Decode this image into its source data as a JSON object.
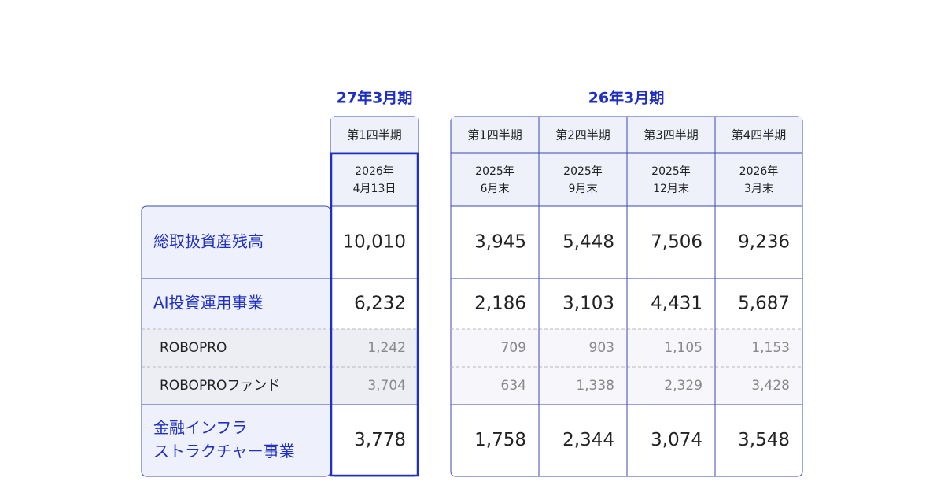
{
  "groups": [
    {
      "title": "27年3月期",
      "columns": [
        {
          "quarter": "第1四半期",
          "date": [
            "2026年",
            "4月13日"
          ]
        }
      ]
    },
    {
      "title": "26年3月期",
      "columns": [
        {
          "quarter": "第1四半期",
          "date": [
            "2025年",
            "6月末"
          ]
        },
        {
          "quarter": "第2四半期",
          "date": [
            "2025年",
            "9月末"
          ]
        },
        {
          "quarter": "第3四半期",
          "date": [
            "2025年",
            "12月末"
          ]
        },
        {
          "quarter": "第4四半期",
          "date": [
            "2026年",
            "3月末"
          ]
        }
      ]
    }
  ],
  "rows": [
    {
      "label": [
        "総取扱資産残高"
      ],
      "values": [
        "10,010",
        "3,945",
        "5,448",
        "7,506",
        "9,236"
      ]
    },
    {
      "label": [
        "AI投資運用事業"
      ],
      "values": [
        "6,232",
        "2,186",
        "3,103",
        "4,431",
        "5,687"
      ]
    },
    {
      "label": [
        "ROBOPRO"
      ],
      "values": [
        "1,242",
        "709",
        "903",
        "1,105",
        "1,153"
      ]
    },
    {
      "label": [
        "ROBOPROファンド"
      ],
      "values": [
        "3,704",
        "634",
        "1,338",
        "2,329",
        "3,428"
      ]
    },
    {
      "label": [
        "金融インフラ",
        "ストラクチャー事業"
      ],
      "values": [
        "3,778",
        "1,758",
        "2,344",
        "3,074",
        "3,548"
      ]
    }
  ]
}
